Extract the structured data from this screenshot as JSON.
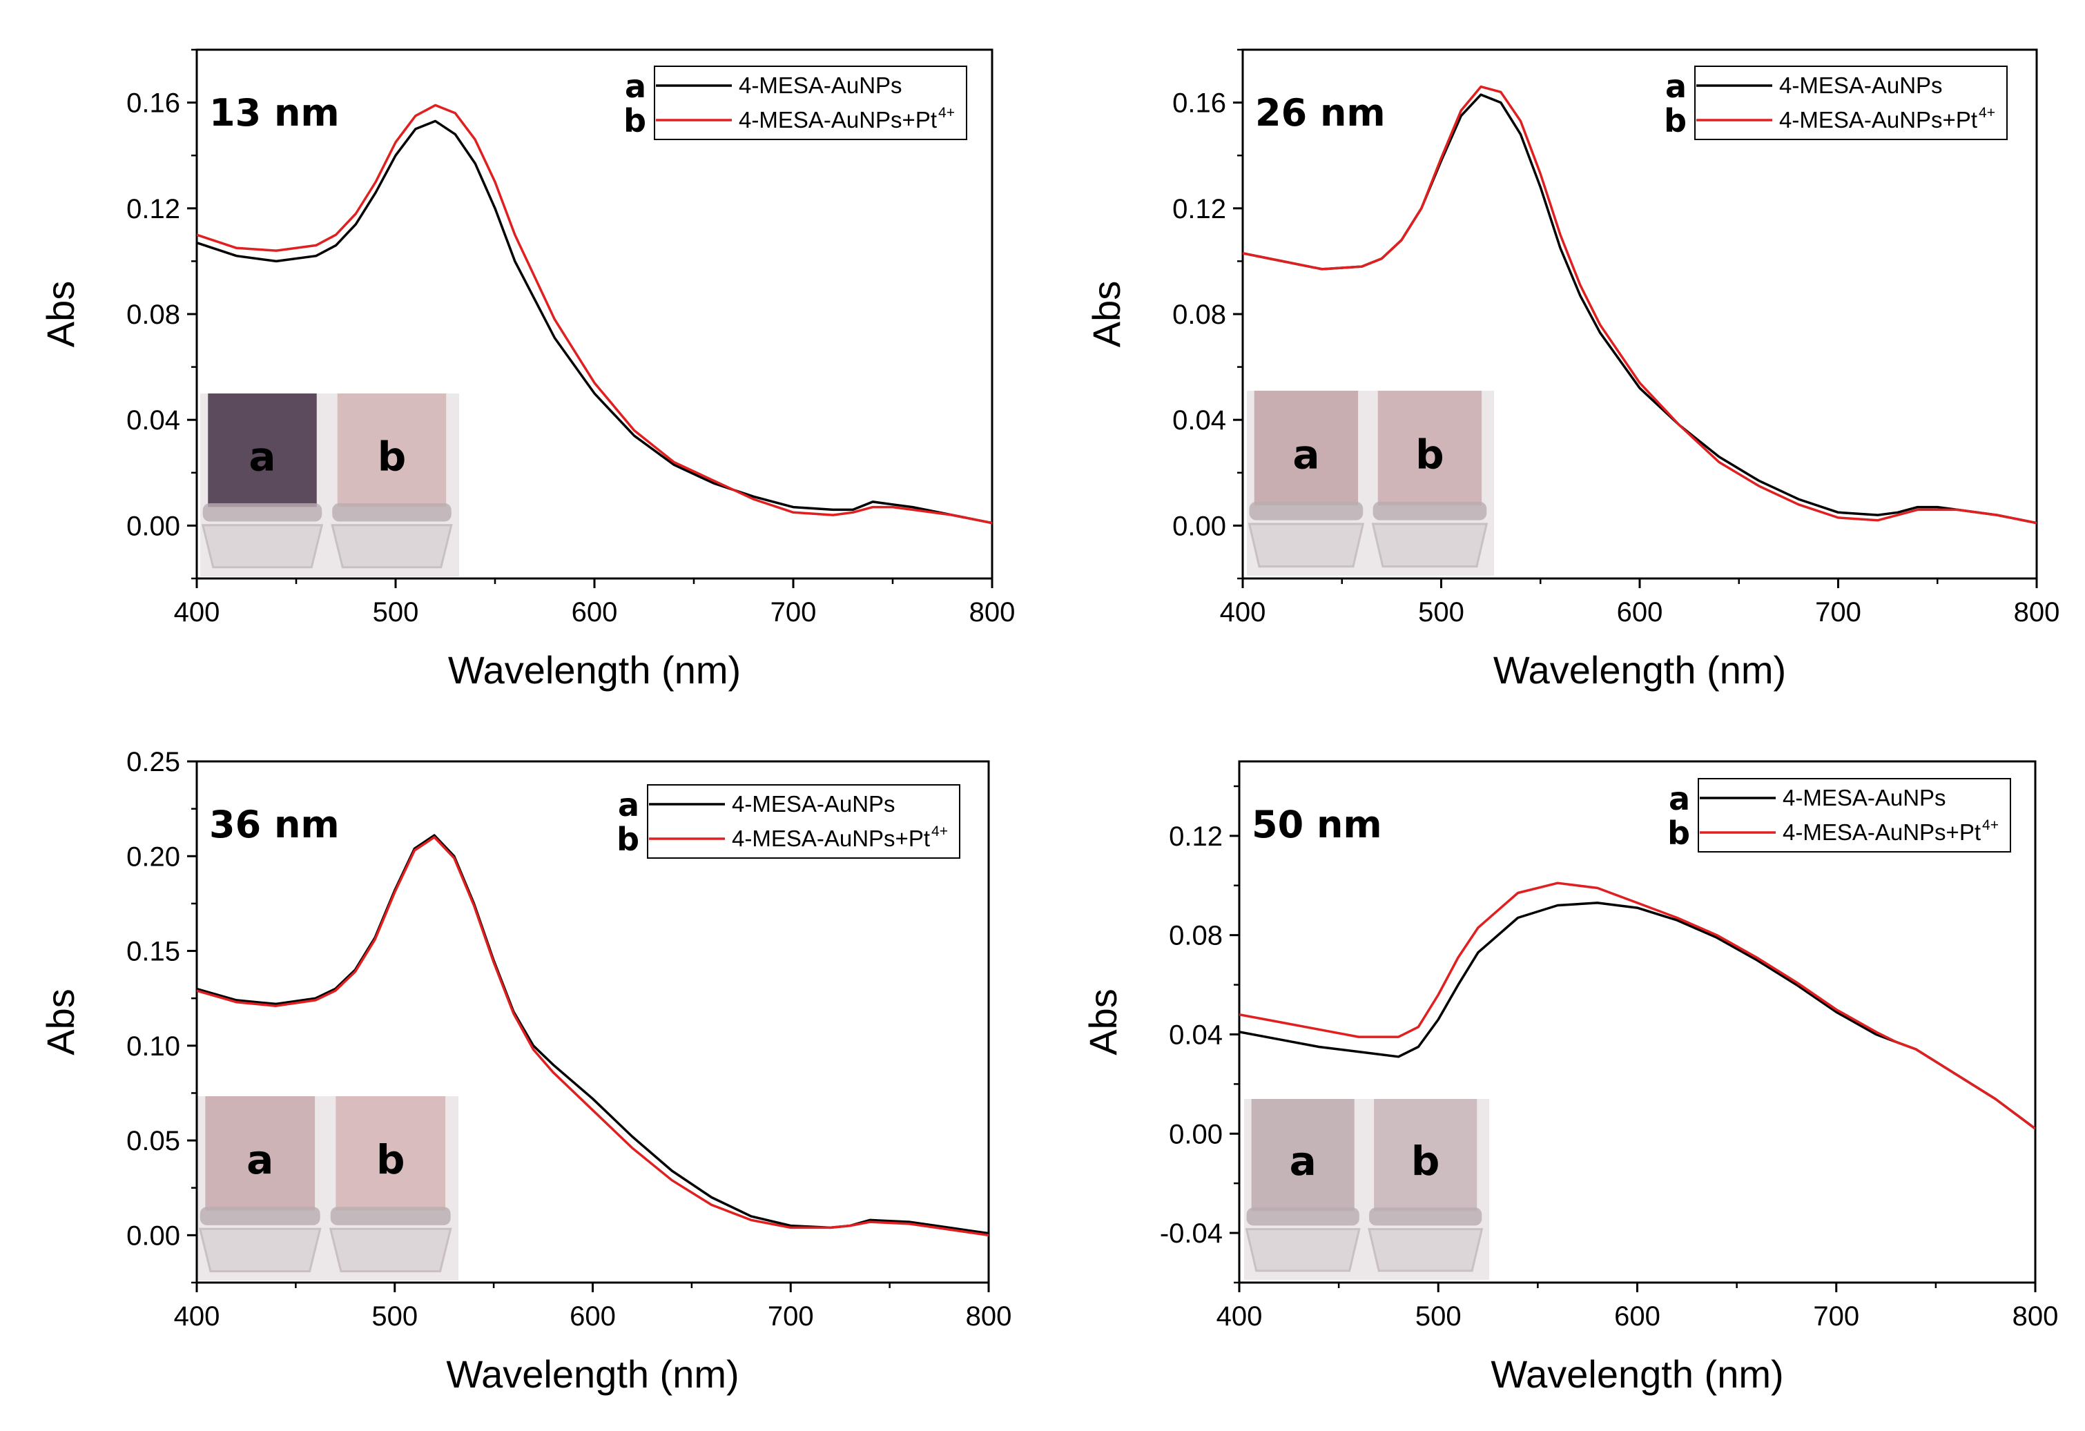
{
  "colors": {
    "series_a": "#000000",
    "series_b": "#e02020",
    "axis": "#000000"
  },
  "chart_data": [
    {
      "type": "line",
      "title": "13 nm",
      "xlabel": "Wavelength (nm)",
      "ylabel": "Abs",
      "xlim": [
        400,
        800
      ],
      "ylim": [
        -0.02,
        0.18
      ],
      "xticks": [
        400,
        500,
        600,
        700,
        800
      ],
      "yticks": [
        0.0,
        0.04,
        0.08,
        0.12,
        0.16
      ],
      "ytick_labels": [
        "0.00",
        "0.04",
        "0.08",
        "0.12",
        "0.16"
      ],
      "legend": {
        "location": "top-right",
        "entries": [
          {
            "key": "a",
            "label": "4-MESA-AuNPs",
            "sup": ""
          },
          {
            "key": "b",
            "label": "4-MESA-AuNPs+Pt",
            "sup": "4+"
          }
        ]
      },
      "inset_labels": [
        "a",
        "b"
      ],
      "inset_colors": [
        "#5c4b5c",
        "#d7bcbd"
      ],
      "series": [
        {
          "name": "4-MESA-AuNPs",
          "x": [
            400,
            420,
            440,
            460,
            470,
            480,
            490,
            500,
            510,
            520,
            530,
            540,
            550,
            560,
            580,
            600,
            620,
            640,
            660,
            680,
            700,
            720,
            730,
            740,
            750,
            760,
            780,
            800
          ],
          "values": [
            0.107,
            0.102,
            0.1,
            0.102,
            0.106,
            0.114,
            0.126,
            0.14,
            0.15,
            0.153,
            0.148,
            0.137,
            0.12,
            0.1,
            0.071,
            0.05,
            0.034,
            0.023,
            0.016,
            0.011,
            0.007,
            0.006,
            0.006,
            0.009,
            0.008,
            0.007,
            0.004,
            0.001
          ]
        },
        {
          "name": "4-MESA-AuNPs+Pt4+",
          "x": [
            400,
            420,
            440,
            460,
            470,
            480,
            490,
            500,
            510,
            520,
            530,
            540,
            550,
            560,
            580,
            600,
            620,
            640,
            660,
            680,
            700,
            720,
            730,
            740,
            750,
            760,
            780,
            800
          ],
          "values": [
            0.11,
            0.105,
            0.104,
            0.106,
            0.11,
            0.118,
            0.13,
            0.145,
            0.155,
            0.159,
            0.156,
            0.146,
            0.13,
            0.11,
            0.078,
            0.054,
            0.036,
            0.024,
            0.017,
            0.01,
            0.005,
            0.004,
            0.005,
            0.007,
            0.007,
            0.006,
            0.004,
            0.001
          ]
        }
      ]
    },
    {
      "type": "line",
      "title": "26 nm",
      "xlabel": "Wavelength (nm)",
      "ylabel": "Abs",
      "xlim": [
        400,
        800
      ],
      "ylim": [
        -0.02,
        0.18
      ],
      "xticks": [
        400,
        500,
        600,
        700,
        800
      ],
      "yticks": [
        0.0,
        0.04,
        0.08,
        0.12,
        0.16
      ],
      "ytick_labels": [
        "0.00",
        "0.04",
        "0.08",
        "0.12",
        "0.16"
      ],
      "legend": {
        "location": "top-right",
        "entries": [
          {
            "key": "a",
            "label": "4-MESA-AuNPs",
            "sup": ""
          },
          {
            "key": "b",
            "label": "4-MESA-AuNPs+Pt",
            "sup": "4+"
          }
        ]
      },
      "inset_labels": [
        "a",
        "b"
      ],
      "inset_colors": [
        "#c8aeb0",
        "#d0b5b8"
      ],
      "series": [
        {
          "name": "4-MESA-AuNPs",
          "x": [
            400,
            420,
            440,
            460,
            470,
            480,
            490,
            500,
            510,
            520,
            530,
            540,
            550,
            560,
            570,
            580,
            600,
            620,
            640,
            660,
            680,
            700,
            720,
            730,
            740,
            750,
            760,
            780,
            800
          ],
          "values": [
            0.103,
            0.1,
            0.097,
            0.098,
            0.101,
            0.108,
            0.12,
            0.138,
            0.155,
            0.163,
            0.16,
            0.148,
            0.128,
            0.105,
            0.087,
            0.073,
            0.052,
            0.038,
            0.026,
            0.017,
            0.01,
            0.005,
            0.004,
            0.005,
            0.007,
            0.007,
            0.006,
            0.004,
            0.001
          ]
        },
        {
          "name": "4-MESA-AuNPs+Pt4+",
          "x": [
            400,
            420,
            440,
            460,
            470,
            480,
            490,
            500,
            510,
            520,
            530,
            540,
            550,
            560,
            570,
            580,
            600,
            620,
            640,
            660,
            680,
            700,
            720,
            730,
            740,
            750,
            760,
            780,
            800
          ],
          "values": [
            0.103,
            0.1,
            0.097,
            0.098,
            0.101,
            0.108,
            0.12,
            0.139,
            0.157,
            0.166,
            0.164,
            0.153,
            0.133,
            0.11,
            0.091,
            0.076,
            0.054,
            0.038,
            0.024,
            0.015,
            0.008,
            0.003,
            0.002,
            0.004,
            0.006,
            0.006,
            0.006,
            0.004,
            0.001
          ]
        }
      ]
    },
    {
      "type": "line",
      "title": "36 nm",
      "xlabel": "Wavelength (nm)",
      "ylabel": "Abs",
      "xlim": [
        400,
        800
      ],
      "ylim": [
        -0.025,
        0.25
      ],
      "xticks": [
        400,
        500,
        600,
        700,
        800
      ],
      "yticks": [
        0.0,
        0.05,
        0.1,
        0.15,
        0.2,
        0.25
      ],
      "ytick_labels": [
        "0.00",
        "0.05",
        "0.10",
        "0.15",
        "0.20",
        "0.25"
      ],
      "legend": {
        "location": "top-right",
        "entries": [
          {
            "key": "a",
            "label": "4-MESA-AuNPs",
            "sup": ""
          },
          {
            "key": "b",
            "label": "4-MESA-AuNPs+Pt",
            "sup": "4+"
          }
        ]
      },
      "inset_labels": [
        "a",
        "b"
      ],
      "inset_colors": [
        "#cdb3b5",
        "#d8bcbe"
      ],
      "series": [
        {
          "name": "4-MESA-AuNPs",
          "x": [
            400,
            420,
            440,
            460,
            470,
            480,
            490,
            500,
            510,
            520,
            530,
            540,
            550,
            560,
            570,
            580,
            600,
            620,
            640,
            660,
            680,
            700,
            720,
            730,
            740,
            760,
            780,
            800
          ],
          "values": [
            0.13,
            0.124,
            0.122,
            0.125,
            0.13,
            0.14,
            0.157,
            0.182,
            0.204,
            0.211,
            0.2,
            0.175,
            0.145,
            0.118,
            0.1,
            0.09,
            0.072,
            0.052,
            0.034,
            0.02,
            0.01,
            0.005,
            0.004,
            0.005,
            0.008,
            0.007,
            0.004,
            0.001
          ]
        },
        {
          "name": "4-MESA-AuNPs+Pt4+",
          "x": [
            400,
            420,
            440,
            460,
            470,
            480,
            490,
            500,
            510,
            520,
            530,
            540,
            550,
            560,
            570,
            580,
            600,
            620,
            640,
            660,
            680,
            700,
            720,
            730,
            740,
            760,
            780,
            800
          ],
          "values": [
            0.129,
            0.123,
            0.121,
            0.124,
            0.129,
            0.139,
            0.156,
            0.181,
            0.203,
            0.21,
            0.199,
            0.174,
            0.144,
            0.117,
            0.098,
            0.086,
            0.066,
            0.046,
            0.029,
            0.016,
            0.008,
            0.004,
            0.004,
            0.005,
            0.007,
            0.006,
            0.003,
            0.0
          ]
        }
      ]
    },
    {
      "type": "line",
      "title": "50 nm",
      "xlabel": "Wavelength (nm)",
      "ylabel": "Abs",
      "xlim": [
        400,
        800
      ],
      "ylim": [
        -0.06,
        0.15
      ],
      "xticks": [
        400,
        500,
        600,
        700,
        800
      ],
      "yticks": [
        -0.04,
        0.0,
        0.04,
        0.08,
        0.12
      ],
      "ytick_labels": [
        "-0.04",
        "0.00",
        "0.04",
        "0.08",
        "0.12"
      ],
      "legend": {
        "location": "top-right",
        "entries": [
          {
            "key": "a",
            "label": "4-MESA-AuNPs",
            "sup": ""
          },
          {
            "key": "b",
            "label": "4-MESA-AuNPs+Pt",
            "sup": "4+"
          }
        ]
      },
      "inset_labels": [
        "a",
        "b"
      ],
      "inset_colors": [
        "#c4b4b8",
        "#cdbdc1"
      ],
      "series": [
        {
          "name": "4-MESA-AuNPs",
          "x": [
            400,
            420,
            440,
            460,
            480,
            490,
            500,
            510,
            520,
            540,
            560,
            580,
            600,
            620,
            640,
            660,
            680,
            700,
            720,
            730,
            740,
            760,
            780,
            800
          ],
          "values": [
            0.041,
            0.038,
            0.035,
            0.033,
            0.031,
            0.035,
            0.046,
            0.06,
            0.073,
            0.087,
            0.092,
            0.093,
            0.091,
            0.086,
            0.079,
            0.07,
            0.06,
            0.049,
            0.04,
            0.037,
            0.034,
            0.024,
            0.014,
            0.002
          ]
        },
        {
          "name": "4-MESA-AuNPs+Pt4+",
          "x": [
            400,
            420,
            440,
            460,
            480,
            490,
            500,
            510,
            520,
            540,
            560,
            580,
            600,
            620,
            640,
            660,
            680,
            700,
            720,
            730,
            740,
            760,
            780,
            800
          ],
          "values": [
            0.048,
            0.045,
            0.042,
            0.039,
            0.039,
            0.043,
            0.056,
            0.071,
            0.083,
            0.097,
            0.101,
            0.099,
            0.093,
            0.087,
            0.08,
            0.071,
            0.061,
            0.05,
            0.041,
            0.037,
            0.034,
            0.024,
            0.014,
            0.002
          ]
        }
      ]
    }
  ]
}
